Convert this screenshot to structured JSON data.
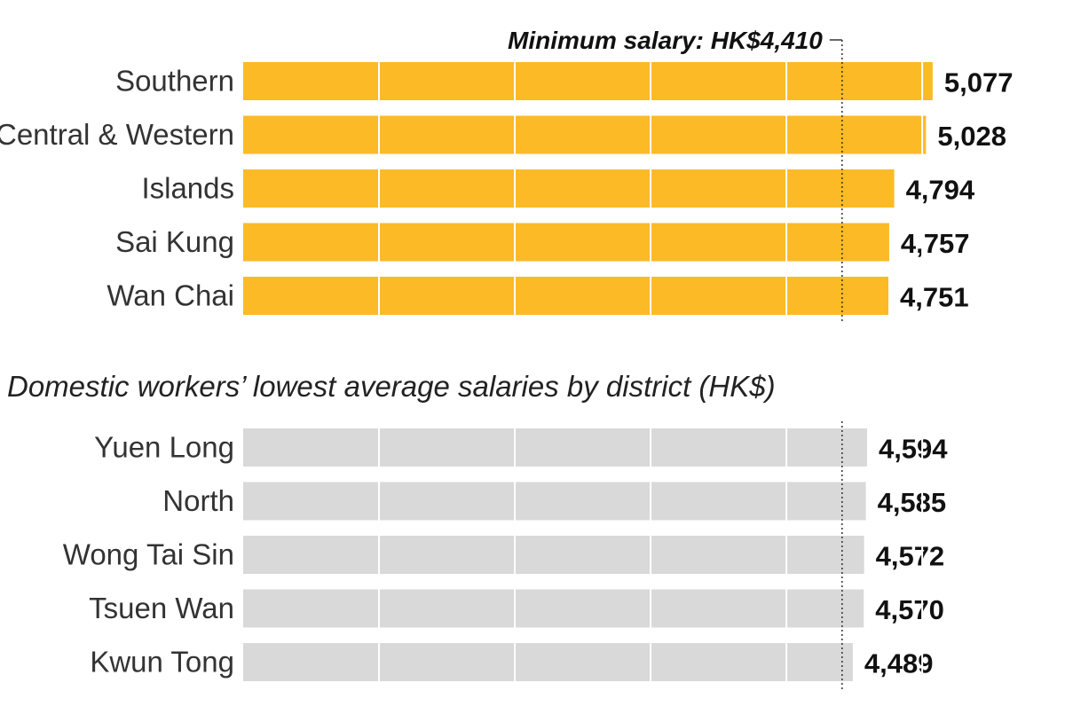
{
  "chart_data": [
    {
      "type": "bar",
      "orientation": "horizontal",
      "title": "",
      "categories": [
        "Southern",
        "Central & Western",
        "Islands",
        "Sai Kung",
        "Wan Chai"
      ],
      "values": [
        5077,
        5028,
        4794,
        4757,
        4751
      ],
      "value_labels": [
        "5,077",
        "5,028",
        "4,794",
        "4,757",
        "4,751"
      ],
      "xlim": [
        0,
        5300
      ],
      "grid": true,
      "color": "#FBBA26",
      "reference_line": {
        "value": 4410,
        "label": "Minimum salary: HK$4,410"
      }
    },
    {
      "type": "bar",
      "orientation": "horizontal",
      "title": "Domestic workers’ lowest average salaries by district (HK$)",
      "categories": [
        "Yuen Long",
        "North",
        "Wong Tai Sin",
        "Tsuen Wan",
        "Kwun Tong"
      ],
      "values": [
        4594,
        4585,
        4572,
        4570,
        4489
      ],
      "value_labels": [
        "4,594",
        "4,585",
        "4,572",
        "4,570",
        "4,489"
      ],
      "xlim": [
        0,
        5300
      ],
      "grid": true,
      "color": "#D9D9D9",
      "reference_line": {
        "value": 4410,
        "label": ""
      }
    }
  ]
}
